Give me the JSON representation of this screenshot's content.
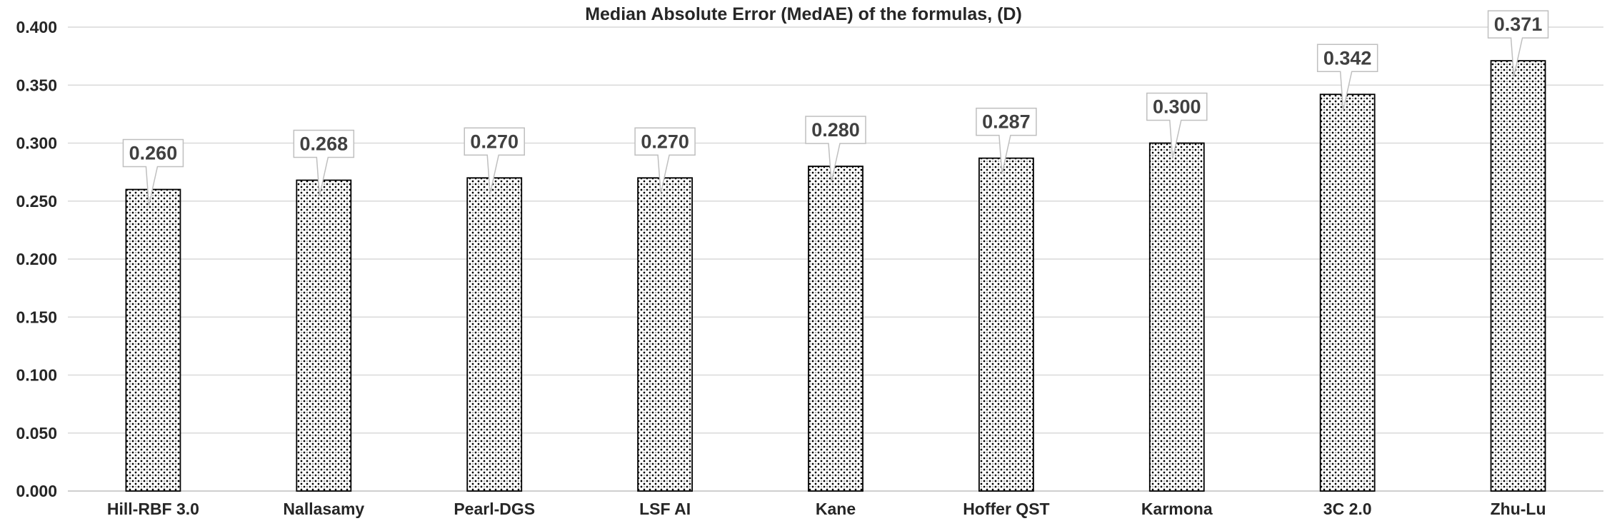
{
  "chart_data": {
    "type": "bar",
    "title": "Median Absolute Error (MedAE) of the formulas, (D)",
    "xlabel": "",
    "ylabel": "",
    "categories": [
      "Hill-RBF 3.0",
      "Nallasamy",
      "Pearl-DGS",
      "LSF AI",
      "Kane",
      "Hoffer QST",
      "Karmona",
      "3C 2.0",
      "Zhu-Lu"
    ],
    "values": [
      0.26,
      0.268,
      0.27,
      0.27,
      0.28,
      0.287,
      0.3,
      0.342,
      0.371
    ],
    "data_labels": [
      "0.260",
      "0.268",
      "0.270",
      "0.270",
      "0.280",
      "0.287",
      "0.300",
      "0.342",
      "0.371"
    ],
    "ylim": [
      0,
      0.4
    ],
    "yticks": [
      0.0,
      0.05,
      0.1,
      0.15,
      0.2,
      0.25,
      0.3,
      0.35,
      0.4
    ],
    "ytick_labels": [
      "0.000",
      "0.050",
      "0.100",
      "0.150",
      "0.200",
      "0.250",
      "0.300",
      "0.350",
      "0.400"
    ],
    "grid": true,
    "legend": "none",
    "bar_fill": "dotted-pattern",
    "colors": {
      "bar_stroke": "#000000",
      "grid": "#d9d9d9",
      "text": "#262626",
      "label_text": "#404040",
      "label_border": "#bfbfbf"
    }
  }
}
